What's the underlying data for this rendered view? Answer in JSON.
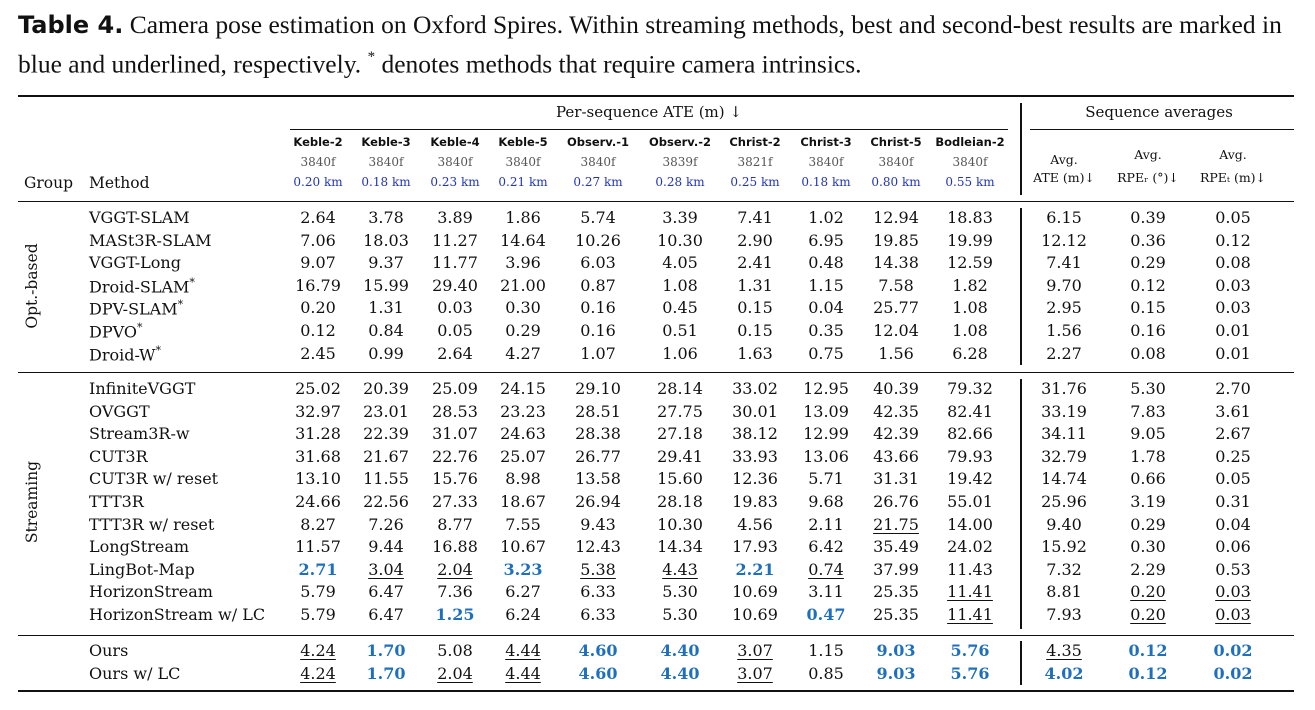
{
  "caption": {
    "label": "Table 4.",
    "text": " Camera pose estimation on Oxford Spires. Within streaming methods, best and second-best results are marked in blue and underlined, respectively. ",
    "star": "*",
    "text2": " denotes methods that require camera intrinsics."
  },
  "header": {
    "ate_group": "Per-sequence ATE (m) ↓",
    "avg_group": "Sequence averages",
    "group_col": "Group",
    "method_col": "Method",
    "sequences": [
      {
        "name": "Keble-2",
        "frames": "3840f",
        "dist": "0.20 km"
      },
      {
        "name": "Keble-3",
        "frames": "3840f",
        "dist": "0.18 km"
      },
      {
        "name": "Keble-4",
        "frames": "3840f",
        "dist": "0.23 km"
      },
      {
        "name": "Keble-5",
        "frames": "3840f",
        "dist": "0.21 km"
      },
      {
        "name": "Observ.-1",
        "frames": "3840f",
        "dist": "0.27 km"
      },
      {
        "name": "Observ.-2",
        "frames": "3839f",
        "dist": "0.28 km"
      },
      {
        "name": "Christ-2",
        "frames": "3821f",
        "dist": "0.25 km"
      },
      {
        "name": "Christ-3",
        "frames": "3840f",
        "dist": "0.18 km"
      },
      {
        "name": "Christ-5",
        "frames": "3840f",
        "dist": "0.80 km"
      },
      {
        "name": "Bodleian-2",
        "frames": "3840f",
        "dist": "0.55 km"
      }
    ],
    "averages": [
      {
        "l1": "Avg.",
        "l2": "ATE (m)↓"
      },
      {
        "l1": "Avg.",
        "l2": "RPEᵣ (°)↓"
      },
      {
        "l1": "Avg.",
        "l2": "RPEₜ (m)↓"
      }
    ]
  },
  "groups": [
    {
      "name": "Opt.-based",
      "rows": [
        {
          "method": "VGGT-SLAM",
          "v": [
            "2.64",
            "3.78",
            "3.89",
            "1.86",
            "5.74",
            "3.39",
            "7.41",
            "1.02",
            "12.94",
            "18.83",
            "6.15",
            "0.39",
            "0.05"
          ]
        },
        {
          "method": "MASt3R-SLAM",
          "v": [
            "7.06",
            "18.03",
            "11.27",
            "14.64",
            "10.26",
            "10.30",
            "2.90",
            "6.95",
            "19.85",
            "19.99",
            "12.12",
            "0.36",
            "0.12"
          ]
        },
        {
          "method": "VGGT-Long",
          "v": [
            "9.07",
            "9.37",
            "11.77",
            "3.96",
            "6.03",
            "4.05",
            "2.41",
            "0.48",
            "14.38",
            "12.59",
            "7.41",
            "0.29",
            "0.08"
          ]
        },
        {
          "method": "Droid-SLAM*",
          "v": [
            "16.79",
            "15.99",
            "29.40",
            "21.00",
            "0.87",
            "1.08",
            "1.31",
            "1.15",
            "7.58",
            "1.82",
            "9.70",
            "0.12",
            "0.03"
          ]
        },
        {
          "method": "DPV-SLAM*",
          "v": [
            "0.20",
            "1.31",
            "0.03",
            "0.30",
            "0.16",
            "0.45",
            "0.15",
            "0.04",
            "25.77",
            "1.08",
            "2.95",
            "0.15",
            "0.03"
          ]
        },
        {
          "method": "DPVO*",
          "v": [
            "0.12",
            "0.84",
            "0.05",
            "0.29",
            "0.16",
            "0.51",
            "0.15",
            "0.35",
            "12.04",
            "1.08",
            "1.56",
            "0.16",
            "0.01"
          ]
        },
        {
          "method": "Droid-W*",
          "v": [
            "2.45",
            "0.99",
            "2.64",
            "4.27",
            "1.07",
            "1.06",
            "1.63",
            "0.75",
            "1.56",
            "6.28",
            "2.27",
            "0.08",
            "0.01"
          ]
        }
      ]
    },
    {
      "name": "Streaming",
      "rows": [
        {
          "method": "InfiniteVGGT",
          "v": [
            "25.02",
            "20.39",
            "25.09",
            "24.15",
            "29.10",
            "28.14",
            "33.02",
            "12.95",
            "40.39",
            "79.32",
            "31.76",
            "5.30",
            "2.70"
          ]
        },
        {
          "method": "OVGGT",
          "v": [
            "32.97",
            "23.01",
            "28.53",
            "23.23",
            "28.51",
            "27.75",
            "30.01",
            "13.09",
            "42.35",
            "82.41",
            "33.19",
            "7.83",
            "3.61"
          ]
        },
        {
          "method": "Stream3R-w",
          "v": [
            "31.28",
            "22.39",
            "31.07",
            "24.63",
            "28.38",
            "27.18",
            "38.12",
            "12.99",
            "42.39",
            "82.66",
            "34.11",
            "9.05",
            "2.67"
          ]
        },
        {
          "method": "CUT3R",
          "v": [
            "31.68",
            "21.67",
            "22.76",
            "25.07",
            "26.77",
            "29.41",
            "33.93",
            "13.06",
            "43.66",
            "79.93",
            "32.79",
            "1.78",
            "0.25"
          ]
        },
        {
          "method": "CUT3R w/ reset",
          "v": [
            "13.10",
            "11.55",
            "15.76",
            "8.98",
            "13.58",
            "15.60",
            "12.36",
            "5.71",
            "31.31",
            "19.42",
            "14.74",
            "0.66",
            "0.05"
          ]
        },
        {
          "method": "TTT3R",
          "v": [
            "24.66",
            "22.56",
            "27.33",
            "18.67",
            "26.94",
            "28.18",
            "19.83",
            "9.68",
            "26.76",
            "55.01",
            "25.96",
            "3.19",
            "0.31"
          ]
        },
        {
          "method": "TTT3R w/ reset",
          "v": [
            "8.27",
            "7.26",
            "8.77",
            "7.55",
            "9.43",
            "10.30",
            "4.56",
            "2.11",
            "21.75",
            "14.00",
            "9.40",
            "0.29",
            "0.04"
          ],
          "s": [
            8
          ]
        },
        {
          "method": "LongStream",
          "v": [
            "11.57",
            "9.44",
            "16.88",
            "10.67",
            "12.43",
            "14.34",
            "17.93",
            "6.42",
            "35.49",
            "24.02",
            "15.92",
            "0.30",
            "0.06"
          ]
        },
        {
          "method": "LingBot-Map",
          "v": [
            "2.71",
            "3.04",
            "2.04",
            "3.23",
            "5.38",
            "4.43",
            "2.21",
            "0.74",
            "37.99",
            "11.43",
            "7.32",
            "2.29",
            "0.53"
          ],
          "b": [
            0,
            3,
            6
          ],
          "s": [
            1,
            2,
            4,
            5,
            7
          ]
        },
        {
          "method": "HorizonStream",
          "v": [
            "5.79",
            "6.47",
            "7.36",
            "6.27",
            "6.33",
            "5.30",
            "10.69",
            "3.11",
            "25.35",
            "11.41",
            "8.81",
            "0.20",
            "0.03"
          ],
          "s": [
            9,
            11,
            12
          ]
        },
        {
          "method": "HorizonStream w/ LC",
          "v": [
            "5.79",
            "6.47",
            "1.25",
            "6.24",
            "6.33",
            "5.30",
            "10.69",
            "0.47",
            "25.35",
            "11.41",
            "7.93",
            "0.20",
            "0.03"
          ],
          "b": [
            2,
            7
          ],
          "s": [
            9,
            11,
            12
          ]
        }
      ]
    },
    {
      "name": "",
      "rows": [
        {
          "method": "Ours",
          "v": [
            "4.24",
            "1.70",
            "5.08",
            "4.44",
            "4.60",
            "4.40",
            "3.07",
            "1.15",
            "9.03",
            "5.76",
            "4.35",
            "0.12",
            "0.02"
          ],
          "b": [
            1,
            4,
            5,
            8,
            9,
            11,
            12
          ],
          "s": [
            0,
            3,
            6,
            10
          ]
        },
        {
          "method": "Ours w/ LC",
          "v": [
            "4.24",
            "1.70",
            "2.04",
            "4.44",
            "4.60",
            "4.40",
            "3.07",
            "0.85",
            "9.03",
            "5.76",
            "4.02",
            "0.12",
            "0.02"
          ],
          "b": [
            1,
            4,
            5,
            8,
            9,
            10,
            11,
            12
          ],
          "s": [
            0,
            2,
            3,
            6
          ]
        }
      ]
    }
  ]
}
